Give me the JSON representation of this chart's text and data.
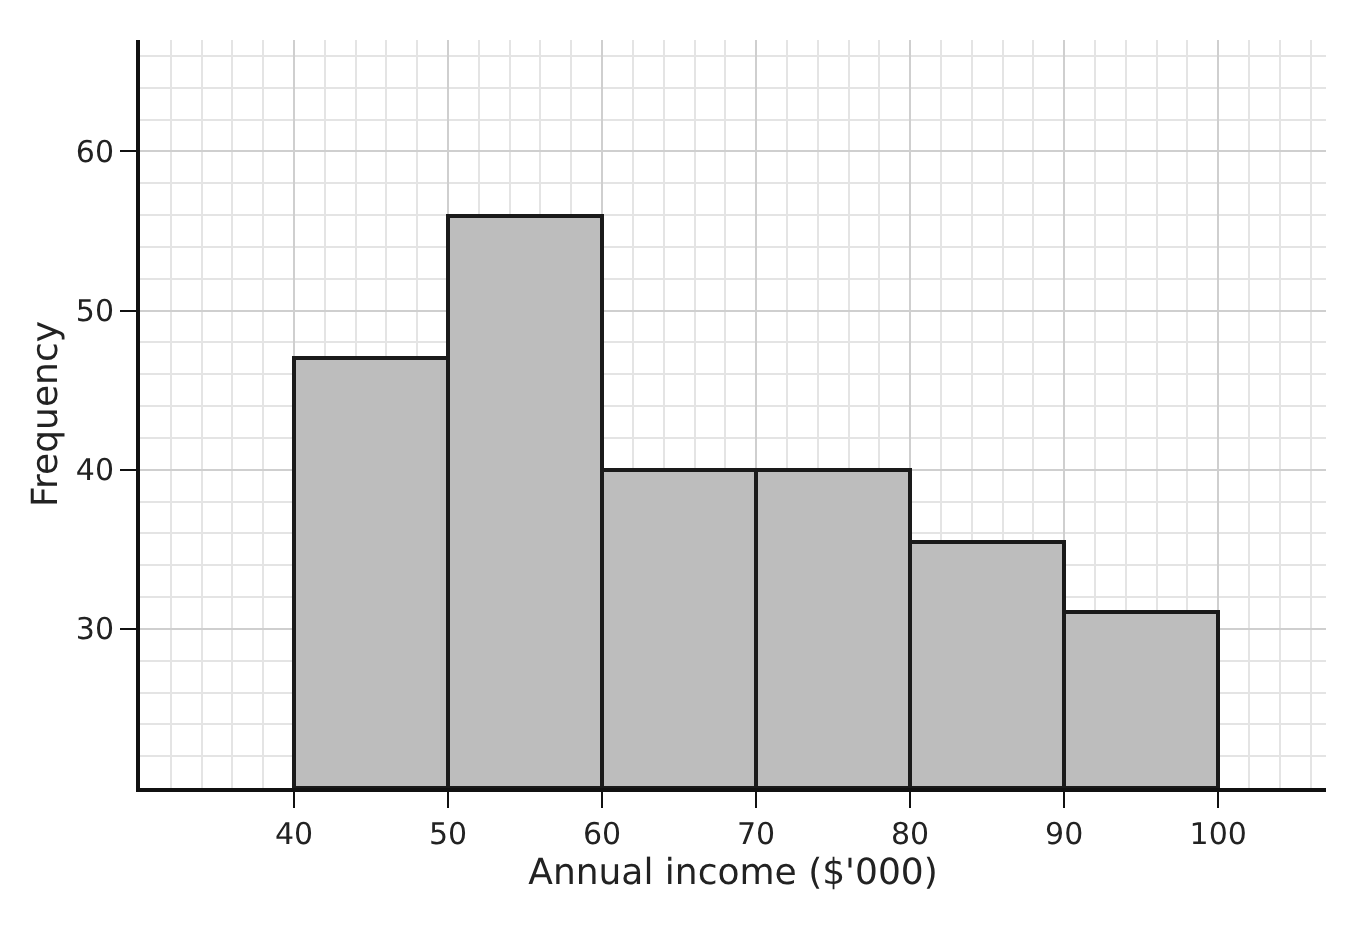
{
  "chart_data": {
    "type": "histogram",
    "xlabel": "Annual income ($'000)",
    "ylabel": "Frequency",
    "bins": [
      40,
      50,
      60,
      70,
      80,
      90,
      100
    ],
    "values": [
      47,
      56,
      40,
      40,
      35.5,
      31
    ],
    "color": "#bdbdbd",
    "xlim": [
      30,
      107
    ],
    "xticks": [
      40,
      50,
      60,
      70,
      80,
      90,
      100
    ],
    "ylim": [
      20,
      67
    ],
    "yticks": [
      30,
      40,
      50,
      60
    ],
    "grid": true
  }
}
